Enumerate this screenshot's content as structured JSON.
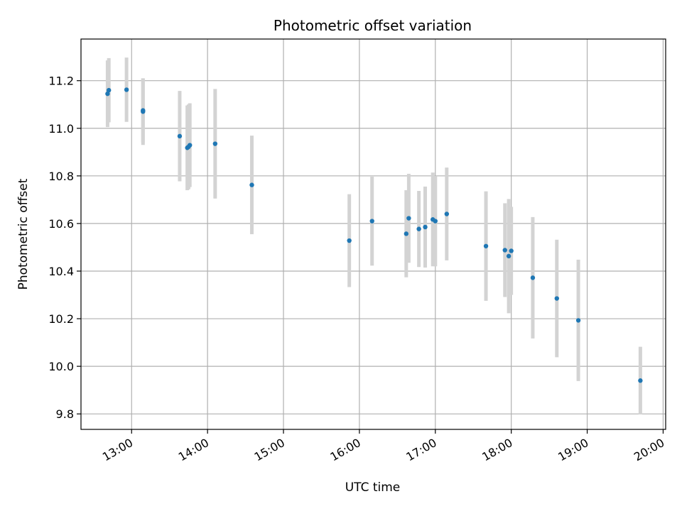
{
  "chart_data": {
    "type": "scatter",
    "title": "Photometric offset variation",
    "xlabel": "UTC time",
    "ylabel": "Photometric offset",
    "xlim": [
      "12:20",
      "20:02"
    ],
    "ylim": [
      9.735,
      11.375
    ],
    "xticks": [
      "13:00",
      "14:00",
      "15:00",
      "16:00",
      "17:00",
      "18:00",
      "19:00",
      "20:00"
    ],
    "yticks": [
      "9.8",
      "10.0",
      "10.2",
      "10.4",
      "10.6",
      "10.8",
      "11.0",
      "11.2"
    ],
    "grid": true,
    "colors": {
      "points": "#1f77b4",
      "errorbars": "#d3d3d3",
      "grid": "#b0b0b0"
    },
    "points": [
      {
        "x": "12:41",
        "y": 11.145,
        "err": 0.14
      },
      {
        "x": "12:42",
        "y": 11.16,
        "err": 0.135
      },
      {
        "x": "12:56",
        "y": 11.162,
        "err": 0.135
      },
      {
        "x": "13:09",
        "y": 11.07,
        "err": 0.14
      },
      {
        "x": "13:09",
        "y": 11.075,
        "err": 0.135
      },
      {
        "x": "13:38",
        "y": 10.967,
        "err": 0.19
      },
      {
        "x": "13:44",
        "y": 10.918,
        "err": 0.178
      },
      {
        "x": "13:45",
        "y": 10.922,
        "err": 0.178
      },
      {
        "x": "13:46",
        "y": 10.929,
        "err": 0.176
      },
      {
        "x": "14:06",
        "y": 10.935,
        "err": 0.23
      },
      {
        "x": "14:35",
        "y": 10.762,
        "err": 0.207
      },
      {
        "x": "15:52",
        "y": 10.528,
        "err": 0.195
      },
      {
        "x": "16:10",
        "y": 10.61,
        "err": 0.187
      },
      {
        "x": "16:37",
        "y": 10.557,
        "err": 0.183
      },
      {
        "x": "16:39",
        "y": 10.622,
        "err": 0.187
      },
      {
        "x": "16:47",
        "y": 10.577,
        "err": 0.16
      },
      {
        "x": "16:52",
        "y": 10.585,
        "err": 0.17
      },
      {
        "x": "16:58",
        "y": 10.617,
        "err": 0.197
      },
      {
        "x": "17:00",
        "y": 10.61,
        "err": 0.19
      },
      {
        "x": "17:09",
        "y": 10.64,
        "err": 0.195
      },
      {
        "x": "17:40",
        "y": 10.505,
        "err": 0.23
      },
      {
        "x": "17:55",
        "y": 10.488,
        "err": 0.197
      },
      {
        "x": "17:58",
        "y": 10.463,
        "err": 0.24
      },
      {
        "x": "18:00",
        "y": 10.485,
        "err": 0.185
      },
      {
        "x": "18:17",
        "y": 10.372,
        "err": 0.255
      },
      {
        "x": "18:36",
        "y": 10.285,
        "err": 0.247
      },
      {
        "x": "18:53",
        "y": 10.193,
        "err": 0.255
      },
      {
        "x": "19:42",
        "y": 9.94,
        "err": 0.142
      }
    ]
  }
}
